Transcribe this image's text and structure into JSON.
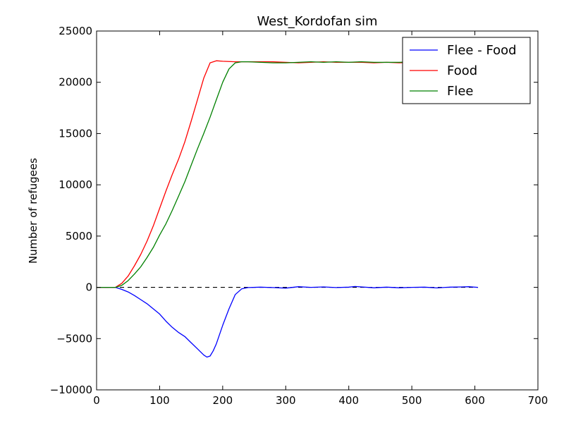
{
  "chart_data": {
    "type": "line",
    "title": "West_Kordofan sim",
    "xlabel": "",
    "ylabel": "Number of refugees",
    "xlim": [
      0,
      700
    ],
    "ylim": [
      -10000,
      25000
    ],
    "xticks": [
      0,
      100,
      200,
      300,
      400,
      500,
      600,
      700
    ],
    "yticks": [
      -10000,
      -5000,
      0,
      5000,
      10000,
      15000,
      20000,
      25000
    ],
    "xtick_labels": [
      "0",
      "100",
      "200",
      "300",
      "400",
      "500",
      "600",
      "700"
    ],
    "ytick_labels": [
      "−10000",
      "−5000",
      "0",
      "5000",
      "10000",
      "15000",
      "20000",
      "25000"
    ],
    "grid": false,
    "legend_position": "top-right",
    "legend": [
      "Flee - Food",
      "Food",
      "Flee"
    ],
    "series": [
      {
        "name": "Flee - Food",
        "color": "#0000ff",
        "x": [
          0,
          30,
          40,
          50,
          60,
          70,
          80,
          90,
          100,
          110,
          120,
          130,
          140,
          150,
          160,
          170,
          175,
          180,
          185,
          190,
          200,
          210,
          220,
          230,
          240,
          260,
          280,
          300,
          320,
          340,
          360,
          380,
          400,
          410,
          420,
          440,
          460,
          480,
          500,
          520,
          540,
          560,
          580,
          590,
          605
        ],
        "values": [
          0,
          0,
          -200,
          -450,
          -800,
          -1200,
          -1600,
          -2100,
          -2600,
          -3300,
          -3900,
          -4400,
          -4800,
          -5400,
          -6000,
          -6600,
          -6800,
          -6700,
          -6200,
          -5500,
          -3700,
          -2100,
          -700,
          -150,
          -20,
          20,
          -20,
          -80,
          60,
          0,
          40,
          -20,
          20,
          80,
          40,
          -40,
          20,
          -40,
          0,
          20,
          -60,
          20,
          40,
          60,
          0
        ]
      },
      {
        "name": "Food",
        "color": "#ff0000",
        "x": [
          0,
          30,
          40,
          50,
          60,
          70,
          80,
          90,
          100,
          110,
          120,
          130,
          140,
          150,
          160,
          170,
          180,
          190,
          200,
          220,
          240,
          260,
          280,
          300,
          320,
          340,
          360,
          380,
          400,
          420,
          440,
          460,
          480,
          500
        ],
        "values": [
          0,
          0,
          400,
          1100,
          2100,
          3200,
          4500,
          6000,
          7700,
          9400,
          11000,
          12500,
          14200,
          16200,
          18300,
          20400,
          21900,
          22100,
          22050,
          22000,
          22000,
          22000,
          22000,
          21950,
          21900,
          21950,
          22000,
          21950,
          21950,
          21950,
          21900,
          21950,
          21900,
          21950
        ]
      },
      {
        "name": "Flee",
        "color": "#008000",
        "x": [
          0,
          30,
          40,
          50,
          60,
          70,
          80,
          90,
          100,
          110,
          120,
          130,
          140,
          150,
          160,
          170,
          180,
          190,
          200,
          210,
          220,
          230,
          240,
          260,
          280,
          300,
          320,
          340,
          360,
          380,
          400,
          420,
          440,
          460,
          480,
          500
        ],
        "values": [
          0,
          0,
          200,
          650,
          1300,
          2000,
          2900,
          3900,
          5100,
          6200,
          7500,
          8900,
          10300,
          11900,
          13500,
          15000,
          16600,
          18300,
          20000,
          21300,
          21900,
          22000,
          22000,
          21950,
          21900,
          21900,
          21950,
          22000,
          21950,
          22000,
          21950,
          22000,
          21950,
          21950,
          21950,
          22000
        ]
      }
    ],
    "reference_line": {
      "y": 0,
      "x_range": [
        0,
        605
      ],
      "style": "dashed",
      "color": "#000000"
    }
  }
}
